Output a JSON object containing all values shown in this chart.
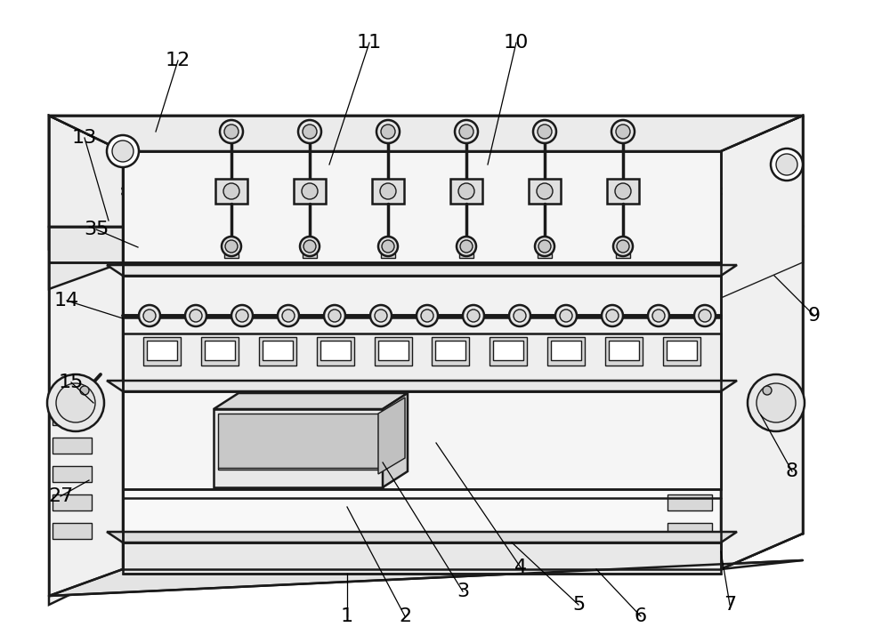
{
  "background_color": "#ffffff",
  "line_color": "#1a1a1a",
  "lw": 1.8,
  "tlw": 1.0,
  "gray_light": "#f0f0f0",
  "gray_mid": "#e0e0e0",
  "gray_dark": "#c8c8c8",
  "labels": [
    [
      "1",
      390,
      693,
      390,
      645
    ],
    [
      "2",
      455,
      693,
      390,
      570
    ],
    [
      "3",
      520,
      665,
      430,
      520
    ],
    [
      "4",
      585,
      638,
      490,
      498
    ],
    [
      "5",
      650,
      680,
      575,
      610
    ],
    [
      "6",
      720,
      693,
      670,
      640
    ],
    [
      "7",
      820,
      680,
      810,
      620
    ],
    [
      "8",
      890,
      530,
      855,
      467
    ],
    [
      "9",
      915,
      355,
      870,
      310
    ],
    [
      "10",
      580,
      48,
      548,
      185
    ],
    [
      "11",
      415,
      48,
      370,
      185
    ],
    [
      "12",
      200,
      68,
      175,
      148
    ],
    [
      "13",
      95,
      155,
      122,
      248
    ],
    [
      "14",
      75,
      338,
      138,
      358
    ],
    [
      "15",
      80,
      430,
      105,
      453
    ],
    [
      "27",
      68,
      558,
      100,
      540
    ],
    [
      "35",
      108,
      258,
      155,
      278
    ]
  ]
}
